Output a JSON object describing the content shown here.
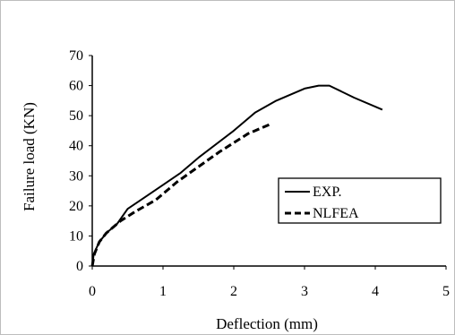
{
  "chart_data": {
    "type": "line",
    "title": "",
    "xlabel": "Deflection (mm)",
    "ylabel": "Failure load (KN)",
    "xlim": [
      0,
      5
    ],
    "ylim": [
      0,
      70
    ],
    "x_ticks": [
      "0",
      "1",
      "2",
      "3",
      "4",
      "5"
    ],
    "y_ticks": [
      "0",
      "10",
      "20",
      "30",
      "40",
      "50",
      "60",
      "70"
    ],
    "grid": false,
    "legend_position": "right",
    "series": [
      {
        "name": "EXP.",
        "style": "solid",
        "color": "#000000",
        "points": [
          [
            0,
            0
          ],
          [
            0.02,
            4
          ],
          [
            0.1,
            8
          ],
          [
            0.2,
            11
          ],
          [
            0.35,
            14
          ],
          [
            0.5,
            19
          ],
          [
            0.75,
            23
          ],
          [
            1.0,
            27
          ],
          [
            1.25,
            31
          ],
          [
            1.5,
            36
          ],
          [
            2.0,
            45
          ],
          [
            2.3,
            51
          ],
          [
            2.6,
            55
          ],
          [
            3.0,
            59
          ],
          [
            3.2,
            60
          ],
          [
            3.35,
            60
          ],
          [
            3.7,
            56
          ],
          [
            4.1,
            52
          ]
        ]
      },
      {
        "name": "NLFEA",
        "style": "dashed",
        "color": "#000000",
        "points": [
          [
            0,
            0
          ],
          [
            0.03,
            4
          ],
          [
            0.1,
            8
          ],
          [
            0.2,
            11
          ],
          [
            0.4,
            15
          ],
          [
            0.6,
            18
          ],
          [
            0.9,
            22
          ],
          [
            1.2,
            28
          ],
          [
            1.5,
            33
          ],
          [
            1.8,
            38
          ],
          [
            2.0,
            41
          ],
          [
            2.2,
            44
          ],
          [
            2.5,
            47
          ]
        ]
      }
    ]
  }
}
